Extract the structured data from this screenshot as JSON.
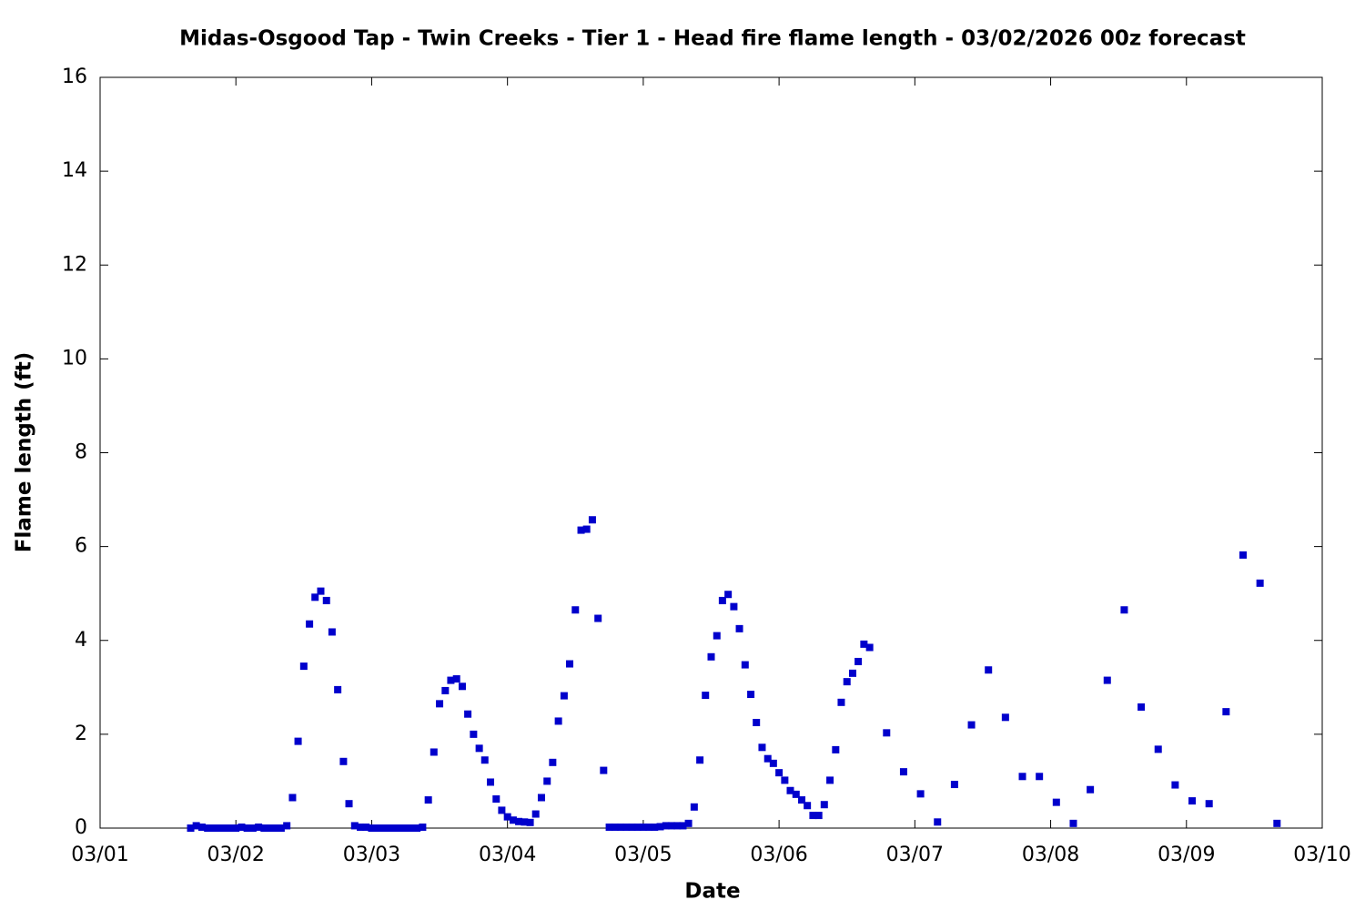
{
  "chart_data": {
    "type": "scatter",
    "title": "Midas-Osgood Tap - Twin Creeks - Tier 1 - Head fire flame length - 03/02/2026 00z forecast",
    "xlabel": "Date",
    "ylabel": "Flame length (ft)",
    "color": "#0000cc",
    "xlim": [
      1,
      10
    ],
    "xticks": [
      {
        "value": 1,
        "label": "03/01"
      },
      {
        "value": 2,
        "label": "03/02"
      },
      {
        "value": 3,
        "label": "03/03"
      },
      {
        "value": 4,
        "label": "03/04"
      },
      {
        "value": 5,
        "label": "03/05"
      },
      {
        "value": 6,
        "label": "03/06"
      },
      {
        "value": 7,
        "label": "03/07"
      },
      {
        "value": 8,
        "label": "03/08"
      },
      {
        "value": 9,
        "label": "03/09"
      },
      {
        "value": 10,
        "label": "03/10"
      }
    ],
    "ylim": [
      0,
      16
    ],
    "yticks": [
      0,
      2,
      4,
      6,
      8,
      10,
      12,
      14,
      16
    ],
    "x": [
      1.667,
      1.708,
      1.75,
      1.792,
      1.833,
      1.875,
      1.917,
      1.958,
      2.0,
      2.042,
      2.083,
      2.125,
      2.167,
      2.208,
      2.25,
      2.292,
      2.333,
      2.375,
      2.417,
      2.458,
      2.5,
      2.542,
      2.583,
      2.625,
      2.667,
      2.708,
      2.75,
      2.792,
      2.833,
      2.875,
      2.917,
      2.958,
      3.0,
      3.042,
      3.083,
      3.125,
      3.167,
      3.208,
      3.25,
      3.292,
      3.333,
      3.375,
      3.417,
      3.458,
      3.5,
      3.542,
      3.583,
      3.625,
      3.667,
      3.708,
      3.75,
      3.792,
      3.833,
      3.875,
      3.917,
      3.958,
      4.0,
      4.042,
      4.083,
      4.125,
      4.167,
      4.208,
      4.25,
      4.292,
      4.333,
      4.375,
      4.417,
      4.458,
      4.5,
      4.542,
      4.583,
      4.625,
      4.667,
      4.708,
      4.75,
      4.792,
      4.833,
      4.875,
      4.917,
      4.958,
      5.0,
      5.042,
      5.083,
      5.125,
      5.167,
      5.208,
      5.25,
      5.292,
      5.333,
      5.375,
      5.417,
      5.458,
      5.5,
      5.542,
      5.583,
      5.625,
      5.667,
      5.708,
      5.75,
      5.792,
      5.833,
      5.875,
      5.917,
      5.958,
      6.0,
      6.042,
      6.083,
      6.125,
      6.167,
      6.208,
      6.25,
      6.292,
      6.333,
      6.375,
      6.417,
      6.458,
      6.5,
      6.542,
      6.583,
      6.625,
      6.667,
      6.792,
      6.917,
      7.042,
      7.167,
      7.292,
      7.417,
      7.542,
      7.667,
      7.792,
      7.917,
      8.042,
      8.167,
      8.292,
      8.417,
      8.542,
      8.667,
      8.792,
      8.917,
      9.042,
      9.167,
      9.292,
      9.417,
      9.542,
      9.667
    ],
    "values": [
      0,
      0.05,
      0.02,
      0,
      0,
      0,
      0,
      0,
      0,
      0.02,
      0,
      0,
      0.02,
      0,
      0,
      0,
      0,
      0.05,
      0.65,
      1.85,
      3.45,
      4.35,
      4.92,
      5.05,
      4.85,
      4.18,
      2.95,
      1.42,
      0.52,
      0.05,
      0.02,
      0.02,
      0,
      0,
      0,
      0,
      0,
      0,
      0,
      0,
      0,
      0.02,
      0.6,
      1.62,
      2.65,
      2.93,
      3.15,
      3.18,
      3.02,
      2.43,
      2.0,
      1.7,
      1.45,
      0.98,
      0.62,
      0.38,
      0.24,
      0.17,
      0.14,
      0.13,
      0.12,
      0.3,
      0.65,
      1.0,
      1.4,
      2.28,
      2.82,
      3.5,
      4.65,
      6.35,
      6.37,
      6.57,
      4.47,
      1.23,
      0.02,
      0.02,
      0.02,
      0.02,
      0.02,
      0.02,
      0.02,
      0.02,
      0.02,
      0.03,
      0.05,
      0.05,
      0.05,
      0.05,
      0.1,
      0.45,
      1.45,
      2.83,
      3.65,
      4.1,
      4.85,
      4.98,
      4.72,
      4.25,
      3.48,
      2.85,
      2.25,
      1.72,
      1.48,
      1.38,
      1.18,
      1.02,
      0.8,
      0.72,
      0.6,
      0.48,
      0.27,
      0.27,
      0.5,
      1.02,
      1.67,
      2.68,
      3.12,
      3.3,
      3.55,
      3.92,
      3.85,
      2.03,
      1.2,
      0.73,
      0.13,
      0.93,
      2.2,
      3.37,
      2.36,
      1.1,
      1.1,
      0.55,
      0.1,
      0.82,
      3.15,
      4.65,
      2.58,
      1.68,
      0.92,
      0.58,
      0.52,
      2.48,
      5.82,
      5.22,
      0.1
    ]
  }
}
